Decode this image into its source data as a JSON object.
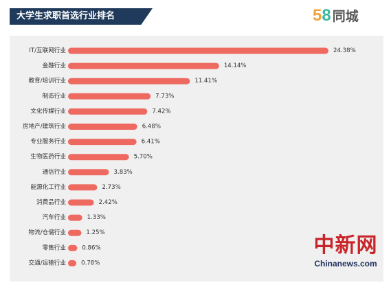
{
  "header": {
    "title": "大学生求职首选行业排名"
  },
  "logo": {
    "digit_5": "5",
    "digit_8": "8",
    "text": "同城"
  },
  "watermark": {
    "cn": "中新网",
    "en": "Chinanews.com"
  },
  "colors": {
    "bar": "#ee6a60",
    "header_bg": "#1f3a5a",
    "panel_bg": "#f0f0f0"
  },
  "chart_data": {
    "type": "bar",
    "orientation": "horizontal",
    "categories": [
      "IT/互联网行业",
      "金融行业",
      "教育/培训行业",
      "制造行业",
      "文化传媒行业",
      "房地产/建筑行业",
      "专业服务行业",
      "生物医药行业",
      "通信行业",
      "能源化工行业",
      "消费品行业",
      "汽车行业",
      "物流/仓储行业",
      "零售行业",
      "交通/运输行业"
    ],
    "values": [
      24.38,
      14.14,
      11.41,
      7.73,
      7.42,
      6.48,
      6.41,
      5.7,
      3.83,
      2.73,
      2.42,
      1.33,
      1.25,
      0.86,
      0.78
    ],
    "value_labels": [
      "24.38%",
      "14.14%",
      "11.41%",
      "7.73%",
      "7.42%",
      "6.48%",
      "6.41%",
      "5.70%",
      "3.83%",
      "2.73%",
      "2.42%",
      "1.33%",
      "1.25%",
      "0.86%",
      "0.78%"
    ],
    "title": "大学生求职首选行业排名",
    "xlim": [
      0,
      24.38
    ],
    "grid": false,
    "legend": "none"
  }
}
